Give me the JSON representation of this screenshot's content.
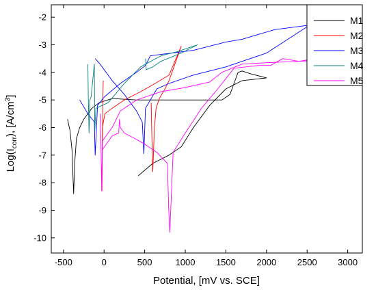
{
  "chart_data": {
    "type": "line",
    "xlabel": "Potential, [mV vs. SCE]",
    "ylabel": {
      "main": "Log(I",
      "sub": "corr",
      "rest": "), [A/cm",
      "sup": "3",
      "close": "]"
    },
    "xlim": [
      -650,
      3180
    ],
    "ylim": [
      -10.55,
      -1.55
    ],
    "xticks": [
      -500,
      0,
      500,
      1000,
      1500,
      2000,
      2500,
      3000
    ],
    "yticks": [
      -2,
      -3,
      -4,
      -5,
      -6,
      -7,
      -8,
      -9,
      -10
    ],
    "legend_position": "top-right",
    "series": [
      {
        "name": "M1",
        "color": "#000000",
        "points": [
          [
            -450,
            -5.7
          ],
          [
            -420,
            -6.1
          ],
          [
            -395,
            -6.8
          ],
          [
            -375,
            -8.4
          ],
          [
            -360,
            -7.2
          ],
          [
            -340,
            -6.4
          ],
          [
            -300,
            -6.0
          ],
          [
            -250,
            -5.7
          ],
          [
            -150,
            -5.3
          ],
          [
            -60,
            -5.1
          ],
          [
            100,
            -4.95
          ],
          [
            400,
            -5.0
          ],
          [
            1000,
            -5.0
          ],
          [
            1450,
            -5.0
          ],
          [
            1550,
            -4.8
          ],
          [
            1600,
            -4.4
          ],
          [
            1650,
            -4.0
          ],
          [
            1700,
            -3.95
          ],
          [
            1800,
            -4.05
          ],
          [
            2000,
            -4.2
          ],
          [
            1700,
            -4.3
          ],
          [
            1500,
            -4.6
          ],
          [
            1300,
            -5.2
          ],
          [
            1100,
            -6.0
          ],
          [
            950,
            -6.7
          ],
          [
            800,
            -7.0
          ],
          [
            600,
            -7.3
          ],
          [
            420,
            -7.75
          ]
        ]
      },
      {
        "name": "M2",
        "color": "#ff0000",
        "points": [
          [
            -10,
            -4.3
          ],
          [
            -15,
            -5.0
          ],
          [
            -25,
            -8.3
          ],
          [
            -20,
            -6.0
          ],
          [
            10,
            -5.5
          ],
          [
            100,
            -5.3
          ],
          [
            250,
            -5.0
          ],
          [
            450,
            -4.7
          ],
          [
            600,
            -4.45
          ],
          [
            800,
            -4.1
          ],
          [
            950,
            -3.05
          ],
          [
            920,
            -3.3
          ],
          [
            860,
            -3.8
          ],
          [
            800,
            -4.3
          ],
          [
            750,
            -4.6
          ],
          [
            680,
            -4.95
          ],
          [
            640,
            -5.3
          ],
          [
            620,
            -6.0
          ],
          [
            600,
            -7.6
          ],
          [
            590,
            -6.5
          ],
          [
            580,
            -5.1
          ]
        ]
      },
      {
        "name": "M3",
        "color": "#0000ff",
        "points": [
          [
            -110,
            -3.5
          ],
          [
            -50,
            -3.7
          ],
          [
            100,
            -4.3
          ],
          [
            250,
            -4.8
          ],
          [
            400,
            -5.4
          ],
          [
            470,
            -5.8
          ],
          [
            490,
            -6.95
          ],
          [
            510,
            -5.3
          ],
          [
            650,
            -4.6
          ],
          [
            800,
            -4.4
          ],
          [
            1100,
            -4.1
          ],
          [
            1500,
            -3.8
          ],
          [
            2000,
            -3.3
          ],
          [
            2550,
            -2.25
          ],
          [
            2500,
            -2.3
          ],
          [
            2100,
            -2.45
          ],
          [
            1700,
            -2.8
          ],
          [
            1500,
            -2.9
          ],
          [
            1100,
            -3.2
          ],
          [
            700,
            -3.35
          ],
          [
            570,
            -3.4
          ],
          [
            510,
            -3.75
          ],
          [
            400,
            -4.0
          ],
          [
            200,
            -4.4
          ],
          [
            0,
            -4.9
          ],
          [
            -80,
            -5.2
          ],
          [
            -110,
            -7.0
          ],
          [
            -120,
            -5.8
          ],
          [
            -200,
            -5.5
          ],
          [
            -300,
            -5.0
          ]
        ]
      },
      {
        "name": "M4",
        "color": "#008080",
        "points": [
          [
            -200,
            -3.7
          ],
          [
            -195,
            -4.8
          ],
          [
            -185,
            -6.2
          ],
          [
            -175,
            -5.0
          ],
          [
            -160,
            -4.9
          ],
          [
            -120,
            -3.7
          ],
          [
            -115,
            -6.1
          ],
          [
            -100,
            -5.3
          ],
          [
            50,
            -5.1
          ],
          [
            250,
            -4.4
          ],
          [
            450,
            -3.8
          ],
          [
            700,
            -3.4
          ],
          [
            900,
            -3.25
          ],
          [
            1150,
            -3.0
          ],
          [
            950,
            -3.3
          ],
          [
            700,
            -3.6
          ],
          [
            600,
            -3.8
          ],
          [
            520,
            -3.9
          ],
          [
            510,
            -3.5
          ]
        ]
      },
      {
        "name": "M5",
        "color": "#ff00ff",
        "points": [
          [
            -50,
            -5.5
          ],
          [
            -40,
            -6.3
          ],
          [
            -30,
            -8.3
          ],
          [
            -20,
            -6.5
          ],
          [
            0,
            -6.4
          ],
          [
            100,
            -6.0
          ],
          [
            200,
            -5.4
          ],
          [
            400,
            -5.0
          ],
          [
            700,
            -4.7
          ],
          [
            1000,
            -4.55
          ],
          [
            1300,
            -4.35
          ],
          [
            1450,
            -4.0
          ],
          [
            1700,
            -3.7
          ],
          [
            2000,
            -3.65
          ],
          [
            2400,
            -3.6
          ],
          [
            2700,
            -3.45
          ],
          [
            2850,
            -3.3
          ],
          [
            2900,
            -2.85
          ],
          [
            2930,
            -3.1
          ],
          [
            2950,
            -2.8
          ],
          [
            2970,
            -3.2
          ],
          [
            2990,
            -2.9
          ],
          [
            3000,
            -3.3
          ],
          [
            2850,
            -3.5
          ],
          [
            2700,
            -3.55
          ],
          [
            2400,
            -3.6
          ],
          [
            2200,
            -3.5
          ],
          [
            2050,
            -3.75
          ],
          [
            1900,
            -3.75
          ],
          [
            1600,
            -3.85
          ],
          [
            1400,
            -4.6
          ],
          [
            1200,
            -5.3
          ],
          [
            1000,
            -6.2
          ],
          [
            850,
            -6.9
          ],
          [
            810,
            -9.8
          ],
          [
            795,
            -8.9
          ],
          [
            780,
            -7.3
          ],
          [
            650,
            -6.9
          ],
          [
            500,
            -6.6
          ],
          [
            380,
            -6.4
          ],
          [
            250,
            -6.2
          ],
          [
            200,
            -6.0
          ],
          [
            190,
            -5.7
          ],
          [
            180,
            -6.2
          ],
          [
            100,
            -6.3
          ],
          [
            -20,
            -6.8
          ]
        ]
      }
    ]
  }
}
